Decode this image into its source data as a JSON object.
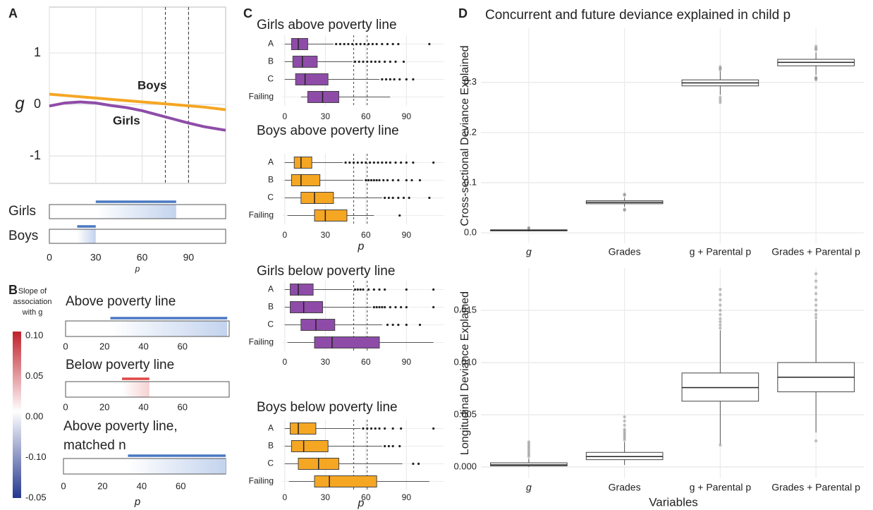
{
  "chart_data": [
    {
      "type": "line",
      "panel": "A",
      "xlabel": "p",
      "ylabel": "g",
      "xlim": [
        0,
        114
      ],
      "ylim": [
        -1.53,
        1.89
      ],
      "xticks": [
        0,
        30,
        60,
        90
      ],
      "yticks": [
        -1,
        0,
        1
      ],
      "grid": true,
      "vlines": [
        75,
        90
      ],
      "series": [
        {
          "name": "Boys",
          "color": "#f5a623",
          "x": [
            0,
            20,
            40,
            60,
            80,
            100,
            114
          ],
          "values": [
            0.2,
            0.15,
            0.1,
            0.05,
            0.0,
            -0.05,
            -0.1
          ]
        },
        {
          "name": "Girls",
          "color": "#8e4ca8",
          "x": [
            0,
            10,
            20,
            30,
            40,
            50,
            60,
            70,
            80,
            90,
            100,
            114
          ],
          "values": [
            -0.03,
            0.03,
            0.05,
            0.03,
            -0.02,
            -0.06,
            -0.12,
            -0.2,
            -0.28,
            -0.36,
            -0.43,
            -0.5
          ]
        }
      ],
      "strips": [
        {
          "name": "Girls",
          "range": [
            30,
            82
          ],
          "color": "#4a78c2"
        },
        {
          "name": "Boys",
          "range": [
            18,
            30
          ],
          "color": "#4a78c2"
        }
      ]
    },
    {
      "type": "strip",
      "panel": "B",
      "xlabel": "p",
      "colorbar": {
        "label": [
          "Slope of",
          "association",
          "with g"
        ],
        "ticks": [
          {
            "value": 0.1,
            "label": "0.10"
          },
          0.05,
          {
            "value": 0,
            "label": "0.00"
          },
          {
            "value": -0.1,
            "label": "-0.10"
          },
          -0.05
        ]
      },
      "panels": [
        {
          "title": [
            "Above poverty line"
          ],
          "range": [
            23,
            83
          ],
          "color": "#4a78c2",
          "xlim": [
            0,
            84
          ],
          "xticks": [
            0,
            20,
            40,
            60
          ]
        },
        {
          "title": [
            "Below poverty line"
          ],
          "range": [
            29,
            43
          ],
          "color": "#e04545",
          "xlim": [
            0,
            84
          ],
          "xticks": [
            0,
            20,
            40,
            60
          ]
        },
        {
          "title": [
            "Above poverty line,",
            "matched n"
          ],
          "range": [
            33,
            83
          ],
          "color": "#4a78c2",
          "xlim": [
            0,
            83
          ],
          "xticks": [
            0,
            20,
            40,
            60
          ]
        }
      ]
    },
    {
      "type": "boxplot",
      "panel": "C",
      "orientation": "horizontal",
      "title": "Girls above poverty line",
      "color": "#8e4ca8",
      "categories": [
        "A",
        "B",
        "C",
        "Failing"
      ],
      "xlim": [
        -2,
        118
      ],
      "xticks": [
        0,
        30,
        60,
        90
      ],
      "vlines": [
        51,
        61
      ],
      "boxes": [
        {
          "whisker_low": 0,
          "q1": 5,
          "median": 10,
          "q3": 17,
          "whisker_high": 36,
          "outliers": [
            38,
            41,
            44,
            47,
            50,
            53,
            56,
            59,
            62,
            65,
            68,
            72,
            76,
            80,
            84,
            107
          ]
        },
        {
          "whisker_low": 0,
          "q1": 6,
          "median": 13,
          "q3": 24,
          "whisker_high": 50,
          "outliers": [
            52,
            55,
            58,
            61,
            64,
            67,
            70,
            74,
            78,
            82,
            88
          ]
        },
        {
          "whisker_low": 0,
          "q1": 8,
          "median": 15,
          "q3": 32,
          "whisker_high": 70,
          "outliers": [
            72,
            75,
            78,
            81,
            85,
            90,
            95
          ]
        },
        {
          "whisker_low": 12,
          "q1": 17,
          "median": 28,
          "q3": 40,
          "whisker_high": 78,
          "outliers": []
        }
      ]
    },
    {
      "type": "boxplot",
      "panel": "C",
      "orientation": "horizontal",
      "title": "Boys above poverty line",
      "xlabel": "p",
      "color": "#f5a623",
      "categories": [
        "A",
        "B",
        "C",
        "Failing"
      ],
      "xlim": [
        -2,
        118
      ],
      "xticks": [
        0,
        30,
        60,
        90
      ],
      "vlines": [
        51,
        61
      ],
      "boxes": [
        {
          "whisker_low": 0,
          "q1": 7,
          "median": 12,
          "q3": 20,
          "whisker_high": 43,
          "outliers": [
            45,
            48,
            51,
            54,
            57,
            60,
            63,
            66,
            69,
            72,
            75,
            78,
            82,
            86,
            90,
            95,
            110
          ]
        },
        {
          "whisker_low": 0,
          "q1": 5,
          "median": 12,
          "q3": 26,
          "whisker_high": 58,
          "outliers": [
            60,
            62,
            64,
            66,
            68,
            70,
            73,
            76,
            80,
            84,
            90,
            94,
            100
          ]
        },
        {
          "whisker_low": 0,
          "q1": 12,
          "median": 22,
          "q3": 36,
          "whisker_high": 72,
          "outliers": [
            74,
            77,
            80,
            84,
            88,
            92,
            107
          ]
        },
        {
          "whisker_low": 2,
          "q1": 22,
          "median": 30,
          "q3": 46,
          "whisker_high": 66,
          "outliers": [
            85
          ]
        }
      ]
    },
    {
      "type": "boxplot",
      "panel": "C",
      "orientation": "horizontal",
      "title": "Girls below poverty line",
      "color": "#8e4ca8",
      "categories": [
        "A",
        "B",
        "C",
        "Failing"
      ],
      "xlim": [
        -2,
        118
      ],
      "xticks": [
        0,
        30,
        60,
        90
      ],
      "vlines": [
        51,
        61
      ],
      "boxes": [
        {
          "whisker_low": 0,
          "q1": 4,
          "median": 10,
          "q3": 21,
          "whisker_high": 50,
          "outliers": [
            52,
            54,
            56,
            58,
            62,
            66,
            70,
            74,
            90,
            110
          ]
        },
        {
          "whisker_low": 0,
          "q1": 4,
          "median": 14,
          "q3": 28,
          "whisker_high": 64,
          "outliers": [
            66,
            68,
            70,
            72,
            74,
            78,
            82,
            86,
            90,
            110
          ]
        },
        {
          "whisker_low": 0,
          "q1": 12,
          "median": 23,
          "q3": 37,
          "whisker_high": 72,
          "outliers": [
            76,
            80,
            84,
            90,
            100
          ]
        },
        {
          "whisker_low": 2,
          "q1": 22,
          "median": 35,
          "q3": 70,
          "whisker_high": 110,
          "outliers": []
        }
      ]
    },
    {
      "type": "boxplot",
      "panel": "C",
      "orientation": "horizontal",
      "title": "Boys below poverty line",
      "xlabel": "p",
      "color": "#f5a623",
      "categories": [
        "A",
        "B",
        "C",
        "Failing"
      ],
      "xlim": [
        -2,
        118
      ],
      "xticks": [
        0,
        30,
        60,
        90
      ],
      "vlines": [
        51,
        61
      ],
      "boxes": [
        {
          "whisker_low": 0,
          "q1": 4,
          "median": 10,
          "q3": 23,
          "whisker_high": 56,
          "outliers": [
            58,
            61,
            64,
            67,
            70,
            74,
            80,
            86,
            110
          ]
        },
        {
          "whisker_low": 0,
          "q1": 5,
          "median": 14,
          "q3": 32,
          "whisker_high": 72,
          "outliers": [
            74,
            77,
            80,
            85
          ]
        },
        {
          "whisker_low": 0,
          "q1": 10,
          "median": 25,
          "q3": 40,
          "whisker_high": 87,
          "outliers": [
            95,
            99
          ]
        },
        {
          "whisker_low": 3,
          "q1": 22,
          "median": 33,
          "q3": 68,
          "whisker_high": 107,
          "outliers": []
        }
      ]
    },
    {
      "type": "boxplot",
      "panel": "D",
      "orientation": "vertical",
      "title": "Concurrent and future deviance explained in child p",
      "ylabel": "Cross-sectional Deviance Explained",
      "color": "#ffffff",
      "categories": [
        "g",
        "Grades",
        "g + Parental p",
        "Grades + Parental p"
      ],
      "ylim": [
        -0.021,
        0.408
      ],
      "yticks": [
        {
          "value": 0,
          "label": "0.0"
        },
        0.1,
        0.2,
        0.3
      ],
      "boxes": [
        {
          "whisker_low": 0.003,
          "q1": 0.004,
          "median": 0.005,
          "q3": 0.006,
          "whisker_high": 0.007,
          "outliers": [
            0.009,
            0.01
          ]
        },
        {
          "whisker_low": 0.052,
          "q1": 0.058,
          "median": 0.061,
          "q3": 0.064,
          "whisker_high": 0.07,
          "outliers": [
            0.045,
            0.047,
            0.075,
            0.077
          ]
        },
        {
          "whisker_low": 0.275,
          "q1": 0.293,
          "median": 0.299,
          "q3": 0.305,
          "whisker_high": 0.322,
          "outliers": [
            0.26,
            0.265,
            0.27,
            0.325,
            0.328,
            0.331
          ]
        },
        {
          "whisker_low": 0.315,
          "q1": 0.333,
          "median": 0.34,
          "q3": 0.346,
          "whisker_high": 0.36,
          "outliers": [
            0.305,
            0.308,
            0.31,
            0.365,
            0.368,
            0.372
          ]
        }
      ]
    },
    {
      "type": "boxplot",
      "panel": "D",
      "orientation": "vertical",
      "ylabel": "Longitudinal Deviance Explained",
      "xlabel": "Variables",
      "color": "#ffffff",
      "categories": [
        "g",
        "Grades",
        "g + Parental p",
        "Grades + Parental p"
      ],
      "ylim": [
        -0.00108,
        0.01905
      ],
      "yticks": [
        {
          "value": 0,
          "label": "0.000"
        },
        0.005,
        {
          "value": 0.01,
          "label": "0.010"
        },
        0.015
      ],
      "boxes": [
        {
          "whisker_low": 0,
          "q1": 0.0001,
          "median": 0.0002,
          "q3": 0.0004,
          "whisker_high": 0.0008,
          "outliers": [
            0.001,
            0.0012,
            0.0014,
            0.0016,
            0.0018,
            0.002,
            0.0022,
            0.0024
          ]
        },
        {
          "whisker_low": 0.0002,
          "q1": 0.0007,
          "median": 0.001,
          "q3": 0.0014,
          "whisker_high": 0.0024,
          "outliers": [
            0.0026,
            0.0028,
            0.003,
            0.0032,
            0.0034,
            0.0036,
            0.004,
            0.0044,
            0.0048
          ]
        },
        {
          "whisker_low": 0.0022,
          "q1": 0.0063,
          "median": 0.0076,
          "q3": 0.009,
          "whisker_high": 0.0131,
          "outliers": [
            0.0021,
            0.0133,
            0.0136,
            0.0139,
            0.0142,
            0.0146,
            0.015,
            0.0155,
            0.016,
            0.0165,
            0.017
          ]
        },
        {
          "whisker_low": 0.0033,
          "q1": 0.0072,
          "median": 0.0086,
          "q3": 0.01,
          "whisker_high": 0.0141,
          "outliers": [
            0.0025,
            0.0143,
            0.0146,
            0.015,
            0.0155,
            0.016,
            0.0166,
            0.0172,
            0.0178,
            0.0185
          ]
        }
      ]
    }
  ]
}
